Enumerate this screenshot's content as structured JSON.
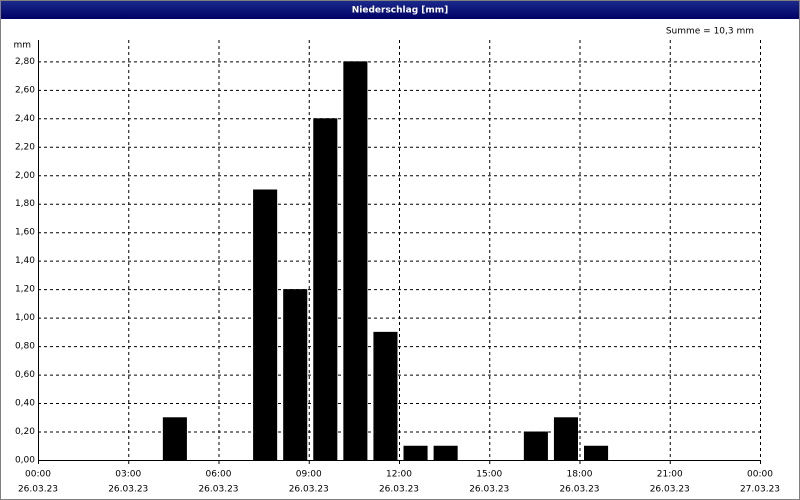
{
  "chart_data": {
    "type": "bar",
    "title": "Niederschlag [mm]",
    "y_unit": "mm",
    "annotation": "Summe = 10,3 mm",
    "x": [
      4,
      7,
      8,
      9,
      10,
      11,
      12,
      13,
      16,
      17,
      18
    ],
    "values": [
      0.3,
      1.9,
      1.2,
      2.4,
      2.8,
      0.9,
      0.1,
      0.1,
      0.2,
      0.3,
      0.1
    ],
    "color": "#000000",
    "xlim": [
      0,
      24
    ],
    "xticks": [
      {
        "value": 0,
        "label": "00:00",
        "date": "26.03.23"
      },
      {
        "value": 3,
        "label": "03:00",
        "date": "26.03.23"
      },
      {
        "value": 6,
        "label": "06:00",
        "date": "26.03.23"
      },
      {
        "value": 9,
        "label": "09:00",
        "date": "26.03.23"
      },
      {
        "value": 12,
        "label": "12:00",
        "date": "26.03.23"
      },
      {
        "value": 15,
        "label": "15:00",
        "date": "26.03.23"
      },
      {
        "value": 18,
        "label": "18:00",
        "date": "26.03.23"
      },
      {
        "value": 21,
        "label": "21:00",
        "date": "26.03.23"
      },
      {
        "value": 24,
        "label": "00:00",
        "date": "27.03.23"
      }
    ],
    "ylim": [
      0,
      2.95
    ],
    "yticks": [
      {
        "value": 0,
        "label": "0,00"
      },
      {
        "value": 0.2,
        "label": "0,20"
      },
      {
        "value": 0.4,
        "label": "0,40"
      },
      {
        "value": 0.6,
        "label": "0,60"
      },
      {
        "value": 0.8,
        "label": "0,80"
      },
      {
        "value": 1.0,
        "label": "1,00"
      },
      {
        "value": 1.2,
        "label": "1,20"
      },
      {
        "value": 1.4,
        "label": "1,40"
      },
      {
        "value": 1.6,
        "label": "1,60"
      },
      {
        "value": 1.8,
        "label": "1,80"
      },
      {
        "value": 2.0,
        "label": "2,00"
      },
      {
        "value": 2.2,
        "label": "2,20"
      },
      {
        "value": 2.4,
        "label": "2,40"
      },
      {
        "value": 2.6,
        "label": "2,60"
      },
      {
        "value": 2.8,
        "label": "2,80"
      }
    ],
    "grid": true
  }
}
